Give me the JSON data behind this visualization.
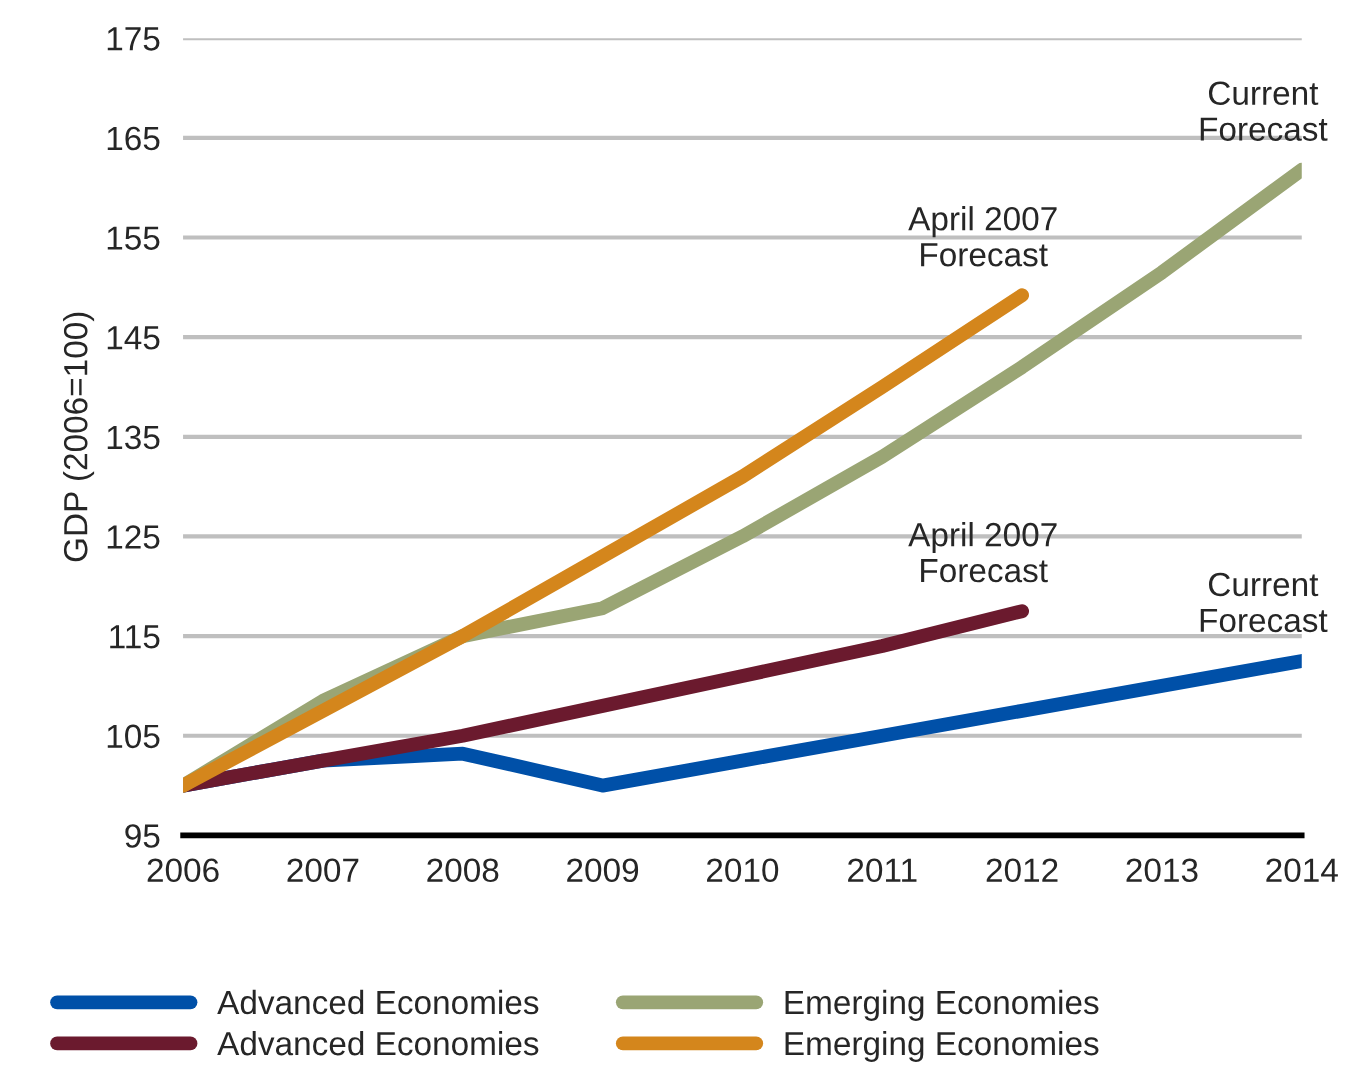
{
  "chart_data": {
    "type": "line",
    "ylabel": "GDP (2006=100)",
    "x": [
      2006,
      2007,
      2008,
      2009,
      2010,
      2011,
      2012,
      2013,
      2014
    ],
    "series": [
      {
        "name": "Advanced Economies",
        "color": "#0050a8",
        "values": [
          100,
          102.5,
          103.2,
          100,
          102.5,
          105,
          107.5,
          110,
          112.5
        ]
      },
      {
        "name": "Advanced Economies",
        "color": "#6b1a2e",
        "values": [
          100,
          102.5,
          105,
          108,
          111,
          114,
          117.5,
          null,
          null
        ]
      },
      {
        "name": "Emerging Economies",
        "color": "#9aa574",
        "values": [
          100,
          108.5,
          115,
          117.8,
          125,
          133,
          142,
          151.5,
          161.8
        ]
      },
      {
        "name": "Emerging Economies",
        "color": "#d4861c",
        "values": [
          100,
          107.5,
          115,
          123,
          131,
          140,
          149.2,
          null,
          null
        ]
      }
    ],
    "annotations": [
      "Current\nForecast",
      "April 2007\nForecast",
      "Current\nForecast",
      "April 2007\nForecast"
    ],
    "xlim": [
      2006,
      2014
    ],
    "xticks": [
      2006,
      2007,
      2008,
      2009,
      2010,
      2011,
      2012,
      2013,
      2014
    ],
    "ylim": [
      95,
      175
    ],
    "yticks": [
      95,
      105,
      115,
      125,
      135,
      145,
      155,
      165,
      175
    ],
    "grid": "y",
    "legend": "bottom",
    "marker": "none",
    "line_style": "solid"
  }
}
